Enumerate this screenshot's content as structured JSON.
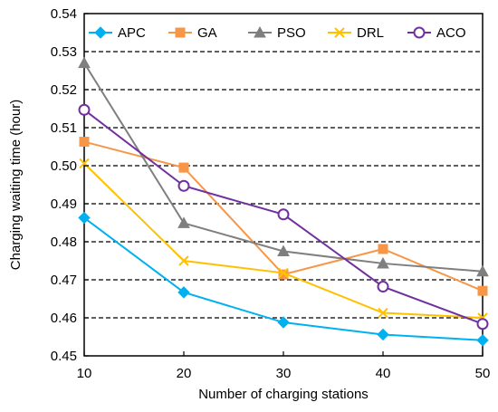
{
  "chart_data": {
    "type": "line",
    "title": "",
    "xlabel": "Number of charging stations",
    "ylabel": "Charging waiting time (hour)",
    "x": [
      10,
      20,
      30,
      40,
      50
    ],
    "xlim": [
      10,
      50
    ],
    "ylim": [
      0.45,
      0.54
    ],
    "yticks": [
      0.45,
      0.46,
      0.47,
      0.48,
      0.49,
      0.5,
      0.51,
      0.52,
      0.53,
      0.54
    ],
    "grid": "horizontal dashed",
    "legend_position": "top",
    "series": [
      {
        "name": "APC",
        "color": "#00B0F0",
        "marker": "diamond",
        "values": [
          0.4863,
          0.4667,
          0.4588,
          0.4556,
          0.4541
        ]
      },
      {
        "name": "GA",
        "color": "#F79646",
        "marker": "square",
        "values": [
          0.5063,
          0.4995,
          0.4714,
          0.4781,
          0.4671
        ]
      },
      {
        "name": "PSO",
        "color": "#7F7F7F",
        "marker": "triangle",
        "values": [
          0.527,
          0.4849,
          0.4775,
          0.4743,
          0.4722
        ]
      },
      {
        "name": "DRL",
        "color": "#FFC000",
        "marker": "x",
        "values": [
          0.5006,
          0.475,
          0.4718,
          0.4613,
          0.46
        ]
      },
      {
        "name": "ACO",
        "color": "#7030A0",
        "marker": "circle",
        "values": [
          0.5147,
          0.4947,
          0.4872,
          0.4682,
          0.4584
        ]
      }
    ]
  }
}
